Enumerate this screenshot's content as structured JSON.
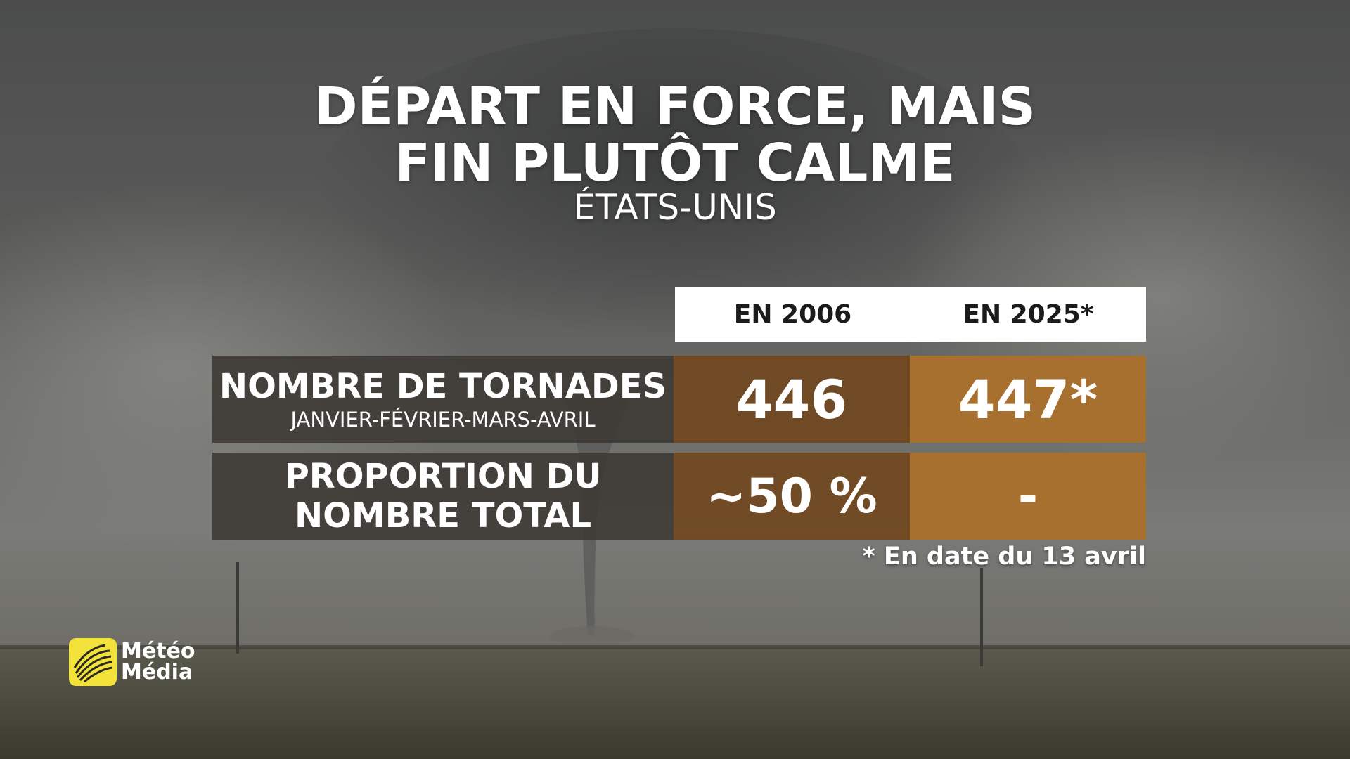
{
  "headline": {
    "line1": "DÉPART EN FORCE, MAIS",
    "line2": "FIN PLUTÔT CALME",
    "region": "ÉTATS-UNIS"
  },
  "table": {
    "columns": [
      "EN 2006",
      "EN 2025*"
    ],
    "rows": [
      {
        "label": "NOMBRE DE TORNADES",
        "sublabel": "JANVIER-FÉVRIER-MARS-AVRIL",
        "values": [
          "446",
          "447*"
        ]
      },
      {
        "label_line1": "PROPORTION DU",
        "label_line2": "NOMBRE TOTAL",
        "values": [
          "~50 %",
          "-"
        ]
      }
    ]
  },
  "footnote": "* En date du 13 avril",
  "brand": {
    "line1": "Météo",
    "line2": "Média",
    "logo_icon": "meteomedia-globe-icon",
    "logo_color": "#f2e23a"
  },
  "colors": {
    "col_2006": "#70481e",
    "col_2025": "#a8702e",
    "label_bg": "#3c3934"
  }
}
